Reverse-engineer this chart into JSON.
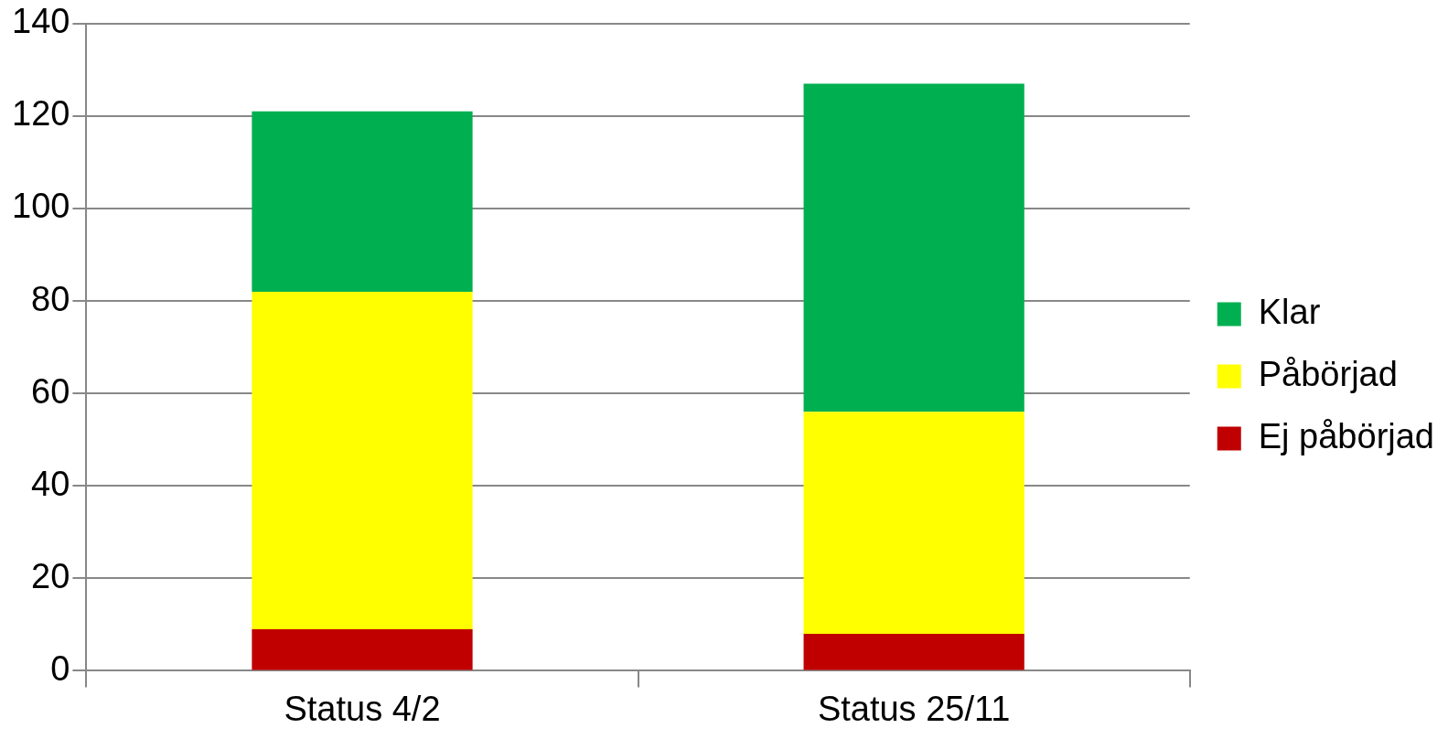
{
  "chart_data": {
    "type": "bar",
    "stacked": true,
    "categories": [
      "Status 4/2",
      "Status 25/11"
    ],
    "series": [
      {
        "name": "Ej påbörjad",
        "color": "#c00000",
        "values": [
          9,
          8
        ]
      },
      {
        "name": "Påbörjad",
        "color": "#ffff00",
        "values": [
          73,
          48
        ]
      },
      {
        "name": "Klar",
        "color": "#00b050",
        "values": [
          39,
          71
        ]
      }
    ],
    "ylim": [
      0,
      140
    ],
    "yticks": [
      0,
      20,
      40,
      60,
      80,
      100,
      120,
      140
    ],
    "grid": "y",
    "legend": "right"
  }
}
